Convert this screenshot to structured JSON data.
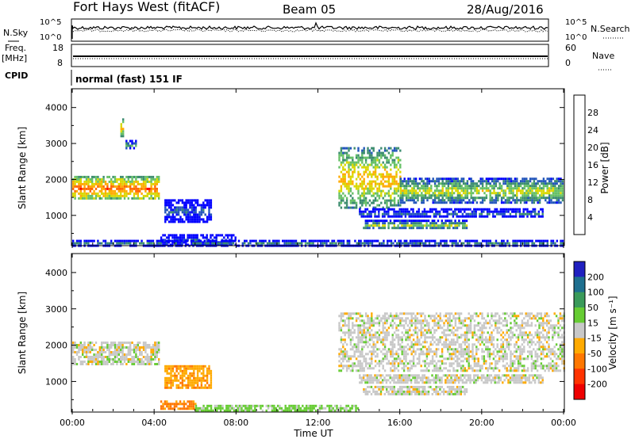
{
  "header": {
    "station": "Fort Hays West (fitACF)",
    "beam": "Beam 05",
    "date": "28/Aug/2016"
  },
  "noise_panel": {
    "left_label": "N.Sky",
    "left_ticks": [
      "10^5",
      "10^0"
    ],
    "right_ticks": [
      "10^5",
      "10^0"
    ],
    "right_label": "N.Search"
  },
  "freq_panel": {
    "left_label_top": "Freq.",
    "left_label_unit": "[MHz]",
    "left_ticks": [
      "18",
      "8"
    ],
    "right_ticks": [
      "60",
      "0"
    ],
    "right_label": "Nave",
    "cpid_label": "CPID",
    "cpid_text": "normal (fast) 151 IF"
  },
  "power_panel": {
    "ylabel": "Slant Range [km]",
    "yticks": [
      "4000",
      "3000",
      "2000",
      "1000"
    ],
    "colorbar_label": "Power [dB]",
    "colorbar_ticks": [
      "28",
      "24",
      "20",
      "16",
      "12",
      "8",
      "4"
    ],
    "colors": [
      "#0000ff",
      "#2255bb",
      "#3b8c6e",
      "#66c066",
      "#d8d800",
      "#ffaa00",
      "#ff6600",
      "#ff0000"
    ]
  },
  "velocity_panel": {
    "ylabel": "Slant Range [km]",
    "yticks": [
      "4000",
      "3000",
      "2000",
      "1000"
    ],
    "colorbar_label": "Velocity [m s⁻¹]",
    "colorbar_ticks": [
      "200",
      "100",
      "50",
      "15",
      "-15",
      "-50",
      "-100",
      "-200"
    ],
    "colors": [
      "#2020c0",
      "#1e6f8f",
      "#3a9a5a",
      "#66cc33",
      "#c8c8c8",
      "#ffaa00",
      "#ff7700",
      "#ff3300",
      "#ee0000"
    ]
  },
  "x_axis": {
    "xlabel": "Time UT",
    "ticks": [
      "00:00",
      "04:00",
      "08:00",
      "12:00",
      "16:00",
      "20:00",
      "00:00"
    ]
  },
  "chart_data": [
    {
      "type": "heatmap",
      "title": "Fort Hays West (fitACF) Beam 05 28/Aug/2016",
      "quantity": "Power",
      "units": "dB",
      "xlabel": "Time UT",
      "ylabel": "Slant Range [km]",
      "xlim_hours": [
        0,
        24
      ],
      "ylim_km": [
        180,
        4500
      ],
      "color_range": [
        0,
        32
      ],
      "echo_regions": [
        {
          "t_start": 0.0,
          "t_end": 4.2,
          "range_start_km": 1450,
          "range_end_km": 2100,
          "power_db": 26
        },
        {
          "t_start": 2.6,
          "t_end": 3.1,
          "range_start_km": 2850,
          "range_end_km": 3100,
          "power_db": 12
        },
        {
          "t_start": 2.35,
          "t_end": 2.45,
          "range_start_km": 3200,
          "range_end_km": 3700,
          "power_db": 22
        },
        {
          "t_start": 4.5,
          "t_end": 6.8,
          "range_start_km": 850,
          "range_end_km": 1450,
          "power_db": 8
        },
        {
          "t_start": 4.3,
          "t_end": 8.0,
          "range_start_km": 200,
          "range_end_km": 480,
          "power_db": 6
        },
        {
          "t_start": 0.0,
          "t_end": 24.0,
          "range_start_km": 180,
          "range_end_km": 320,
          "power_db": 10
        },
        {
          "t_start": 13.0,
          "t_end": 16.0,
          "range_start_km": 1200,
          "range_end_km": 2900,
          "power_db": 22
        },
        {
          "t_start": 16.0,
          "t_end": 24.0,
          "range_start_km": 1350,
          "range_end_km": 2050,
          "power_db": 18
        },
        {
          "t_start": 14.2,
          "t_end": 19.3,
          "range_start_km": 620,
          "range_end_km": 880,
          "power_db": 16
        },
        {
          "t_start": 14.0,
          "t_end": 23.0,
          "range_start_km": 950,
          "range_end_km": 1200,
          "power_db": 8
        }
      ]
    },
    {
      "type": "heatmap",
      "title": "Fort Hays West (fitACF) Beam 05 28/Aug/2016",
      "quantity": "Velocity",
      "units": "m s^-1",
      "xlabel": "Time UT",
      "ylabel": "Slant Range [km]",
      "xlim_hours": [
        0,
        24
      ],
      "ylim_km": [
        180,
        4500
      ],
      "color_range": [
        -240,
        240
      ],
      "echo_regions": [
        {
          "t_start": 0.0,
          "t_end": 4.2,
          "range_start_km": 1450,
          "range_end_km": 2100,
          "velocity": 0
        },
        {
          "t_start": 4.5,
          "t_end": 6.8,
          "range_start_km": 850,
          "range_end_km": 1450,
          "velocity": -40
        },
        {
          "t_start": 4.3,
          "t_end": 6.0,
          "range_start_km": 250,
          "range_end_km": 480,
          "velocity": -60
        },
        {
          "t_start": 6.0,
          "t_end": 14.0,
          "range_start_km": 180,
          "range_end_km": 360,
          "velocity": 25
        },
        {
          "t_start": 13.0,
          "t_end": 24.0,
          "range_start_km": 1300,
          "range_end_km": 2900,
          "velocity": 0
        },
        {
          "t_start": 14.2,
          "t_end": 19.3,
          "range_start_km": 620,
          "range_end_km": 880,
          "velocity": 0
        },
        {
          "t_start": 14.0,
          "t_end": 23.0,
          "range_start_km": 950,
          "range_end_km": 1200,
          "velocity": 0
        }
      ]
    }
  ]
}
